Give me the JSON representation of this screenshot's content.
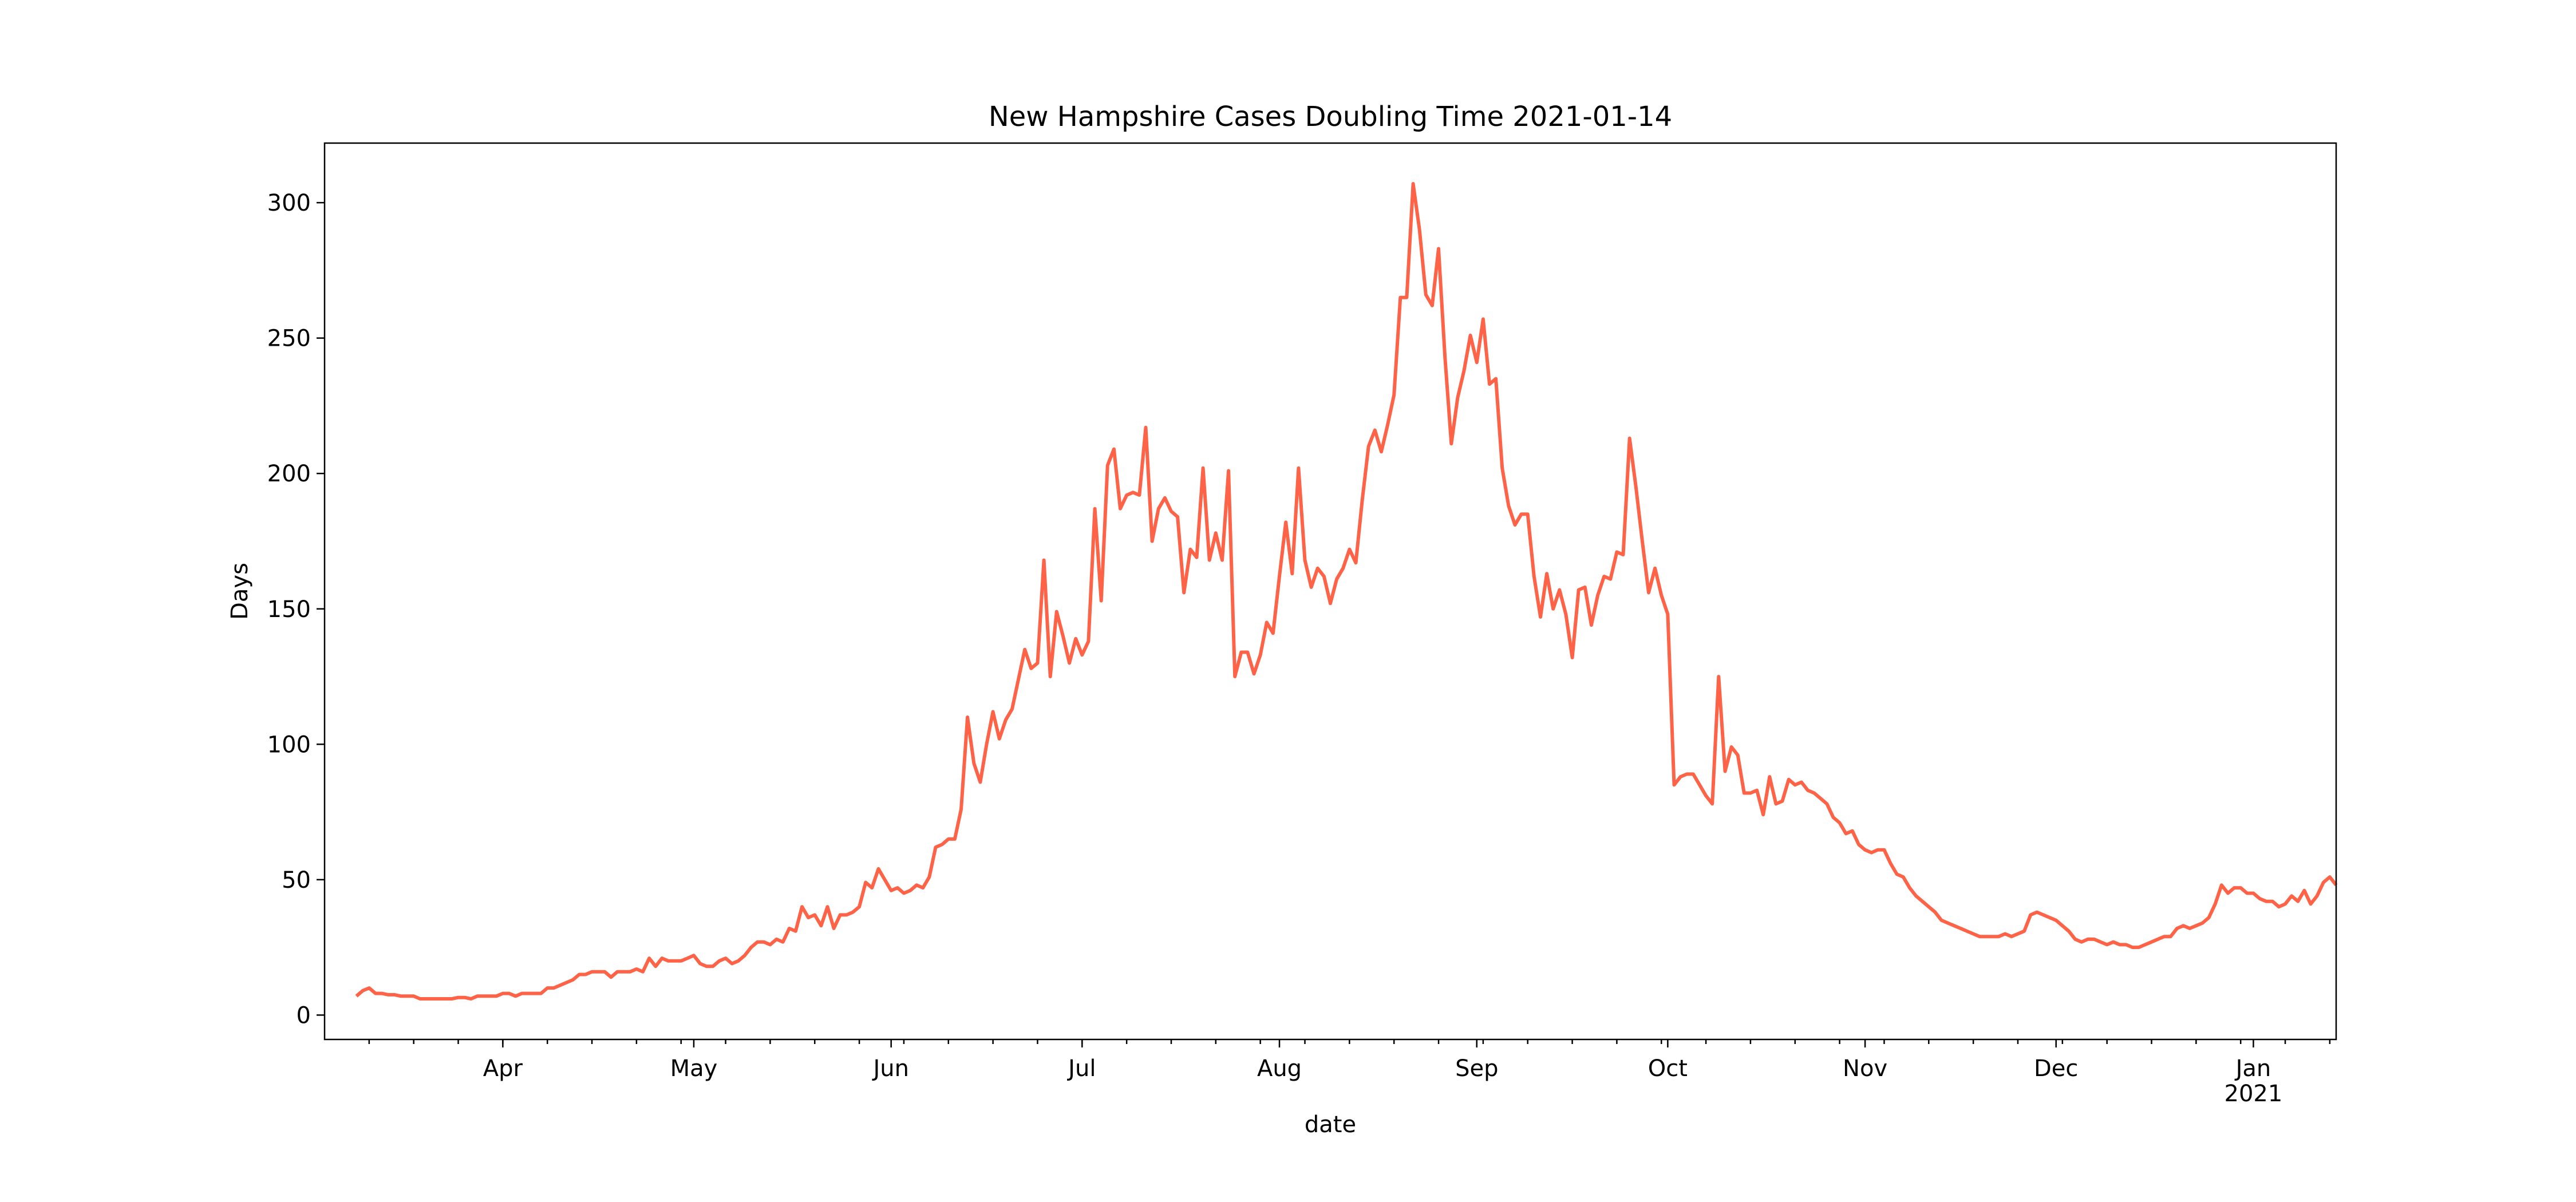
{
  "chart_data": {
    "type": "line",
    "title": "New Hampshire Cases Doubling Time 2021-01-14",
    "xlabel": "date",
    "ylabel": "Days",
    "color": "tomato",
    "ylim": [
      -9,
      322
    ],
    "yticks": [
      0,
      50,
      100,
      150,
      200,
      250,
      300
    ],
    "categories": [
      null,
      null,
      null,
      null,
      null,
      null,
      null,
      null,
      null,
      null,
      null,
      null,
      null,
      null,
      null,
      null,
      null,
      null,
      null,
      null,
      null,
      null,
      null,
      "Apr",
      null,
      null,
      null,
      null,
      null,
      null,
      null,
      null,
      null,
      null,
      null,
      null,
      null,
      null,
      null,
      null,
      null,
      null,
      null,
      null,
      null,
      null,
      null,
      null,
      null,
      null,
      null,
      null,
      null,
      "May",
      null,
      null,
      null,
      null,
      null,
      null,
      null,
      null,
      null,
      null,
      null,
      null,
      null,
      null,
      null,
      null,
      null,
      null,
      null,
      null,
      null,
      null,
      null,
      null,
      null,
      null,
      null,
      null,
      null,
      null,
      "Jun",
      null,
      null,
      null,
      null,
      null,
      null,
      null,
      null,
      null,
      null,
      null,
      null,
      null,
      null,
      null,
      null,
      null,
      null,
      null,
      null,
      null,
      null,
      null,
      null,
      null,
      null,
      null,
      null,
      null,
      "Jul",
      null,
      null,
      null,
      null,
      null,
      null,
      null,
      null,
      null,
      null,
      null,
      null,
      null,
      null,
      null,
      null,
      null,
      null,
      null,
      null,
      null,
      null,
      null,
      null,
      null,
      null,
      null,
      null,
      null,
      null,
      "Aug",
      null,
      null,
      null,
      null,
      null,
      null,
      null,
      null,
      null,
      null,
      null,
      null,
      null,
      null,
      null,
      null,
      null,
      null,
      null,
      null,
      null,
      null,
      null,
      null,
      null,
      null,
      null,
      null,
      null,
      null,
      "Sep",
      null,
      null,
      null,
      null,
      null,
      null,
      null,
      null,
      null,
      null,
      null,
      null,
      null,
      null,
      null,
      null,
      null,
      null,
      null,
      null,
      null,
      null,
      null,
      null,
      null,
      null,
      null,
      null,
      null,
      "Oct",
      null,
      null,
      null,
      null,
      null,
      null,
      null,
      null,
      null,
      null,
      null,
      null,
      null,
      null,
      null,
      null,
      null,
      null,
      null,
      null,
      null,
      null,
      null,
      null,
      null,
      null,
      null,
      null,
      null,
      null,
      "Nov",
      null,
      null,
      null,
      null,
      null,
      null,
      null,
      null,
      null,
      null,
      null,
      null,
      null,
      null,
      null,
      null,
      null,
      null,
      null,
      null,
      null,
      null,
      null,
      null,
      null,
      null,
      null,
      null,
      null,
      "Dec",
      null,
      null,
      null,
      null,
      null,
      null,
      null,
      null,
      null,
      null,
      null,
      null,
      null,
      null,
      null,
      null,
      null,
      null,
      null,
      null,
      null,
      null,
      null,
      null,
      null,
      null,
      null,
      null,
      null,
      null,
      "Jan\n2021",
      null,
      null,
      null,
      null,
      null,
      null,
      null,
      null,
      null,
      null,
      null,
      null,
      null
    ],
    "values": [
      7,
      9,
      10,
      8,
      8,
      7.5,
      7.5,
      7,
      7,
      7,
      6,
      6,
      6,
      6,
      6,
      6,
      6.5,
      6.5,
      6,
      7,
      7,
      7,
      7,
      8,
      8,
      7,
      8,
      8,
      8,
      8,
      10,
      10,
      11,
      12,
      13,
      15,
      15,
      16,
      16,
      16,
      14,
      16,
      16,
      16,
      17,
      16,
      21,
      18,
      21,
      20,
      20,
      20,
      21,
      22,
      19,
      18,
      18,
      20,
      21,
      19,
      20,
      22,
      25,
      27,
      27,
      26,
      28,
      27,
      32,
      31,
      40,
      36,
      37,
      33,
      40,
      32,
      37,
      37,
      38,
      40,
      49,
      47,
      54,
      50,
      46,
      47,
      45,
      46,
      48,
      47,
      51,
      62,
      63,
      65,
      65,
      76,
      110,
      93,
      86,
      100,
      112,
      102,
      109,
      113,
      124,
      135,
      128,
      130,
      168,
      125,
      149,
      140,
      130,
      139,
      133,
      138,
      187,
      153,
      203,
      209,
      187,
      192,
      193,
      192,
      217,
      175,
      187,
      191,
      186,
      184,
      156,
      172,
      169,
      202,
      168,
      178,
      168,
      201,
      125,
      134,
      134,
      126,
      133,
      145,
      141,
      162,
      182,
      163,
      202,
      168,
      158,
      165,
      162,
      152,
      161,
      165,
      172,
      167,
      190,
      210,
      216,
      208,
      218,
      229,
      265,
      265,
      307,
      290,
      266,
      262,
      283,
      243,
      211,
      228,
      238,
      251,
      241,
      257,
      233,
      235,
      202,
      188,
      181,
      185,
      185,
      162,
      147,
      163,
      150,
      157,
      148,
      132,
      157,
      158,
      144,
      155,
      162,
      161,
      171,
      170,
      213,
      195,
      175,
      156,
      165,
      155,
      148,
      85,
      88,
      89,
      89,
      85,
      81,
      78,
      125,
      90,
      99,
      96,
      82,
      82,
      83,
      74,
      88,
      78,
      79,
      87,
      85,
      86,
      83,
      82,
      80,
      78,
      73,
      71,
      67,
      68,
      63,
      61,
      60,
      61,
      61,
      56,
      52,
      51,
      47,
      44,
      42,
      40,
      38,
      35,
      34,
      33,
      32,
      31,
      30,
      29,
      29,
      29,
      29,
      30,
      29,
      30,
      31,
      37,
      38,
      37,
      36,
      35,
      33,
      31,
      28,
      27,
      28,
      28,
      27,
      26,
      27,
      26,
      26,
      25,
      25,
      26,
      27,
      28,
      29,
      29,
      32,
      33,
      32,
      33,
      34,
      36,
      41,
      48,
      45,
      47,
      47,
      45,
      45,
      43,
      42,
      42,
      40,
      41,
      44,
      42,
      46,
      41,
      44,
      49,
      51,
      48
    ]
  }
}
